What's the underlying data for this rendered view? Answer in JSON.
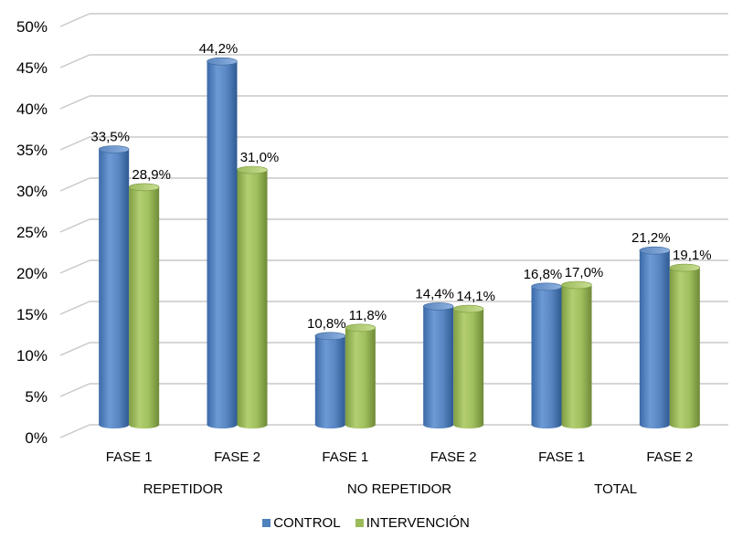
{
  "chart_data": {
    "type": "bar",
    "categories": [
      "FASE 1",
      "FASE 2",
      "FASE 1",
      "FASE 2",
      "FASE 1",
      "FASE 2"
    ],
    "groups": [
      "REPETIDOR",
      "NO REPETIDOR",
      "TOTAL"
    ],
    "series": [
      {
        "name": "CONTROL",
        "values": [
          33.5,
          44.2,
          10.8,
          14.4,
          16.8,
          21.2
        ],
        "labels": [
          "33,5%",
          "44,2%",
          "10,8%",
          "14,4%",
          "16,8%",
          "21,2%"
        ],
        "color": "#4f81bd"
      },
      {
        "name": "INTERVENCIÓN",
        "values": [
          28.9,
          31.0,
          11.8,
          14.1,
          17.0,
          19.1
        ],
        "labels": [
          "28,9%",
          "31,0%",
          "11,8%",
          "14,1%",
          "17,0%",
          "19,1%"
        ],
        "color": "#9bbb59"
      }
    ],
    "y_ticks": [
      "0%",
      "5%",
      "10%",
      "15%",
      "20%",
      "25%",
      "30%",
      "35%",
      "40%",
      "45%",
      "50%"
    ],
    "ylim": [
      0,
      50
    ],
    "grid": true,
    "legend_position": "bottom"
  }
}
